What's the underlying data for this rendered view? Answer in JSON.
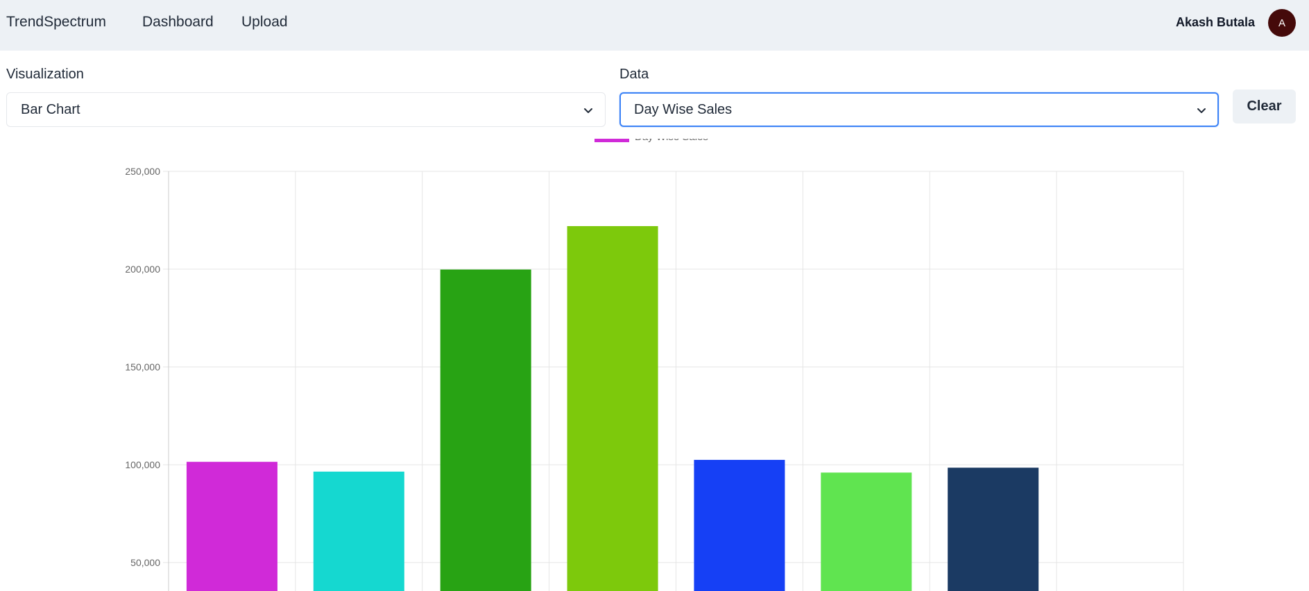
{
  "navbar": {
    "brand": "TrendSpectrum",
    "links": [
      "Dashboard",
      "Upload"
    ],
    "user_name": "Akash Butala",
    "avatar_initial": "A",
    "avatar_color": "#450a0a"
  },
  "controls": {
    "visualization_label": "Visualization",
    "visualization_value": "Bar Chart",
    "data_label": "Data",
    "data_value": "Day Wise Sales",
    "clear_label": "Clear"
  },
  "chart_data": {
    "type": "bar",
    "title": "",
    "xlabel": "",
    "ylabel": "",
    "legend": {
      "label": "Day Wise Sales",
      "color": "#d02ad8",
      "placement": "top-center"
    },
    "grid": true,
    "ylim": [
      0,
      250000
    ],
    "yticks": [
      "250,000",
      "200,000",
      "150,000",
      "100,000",
      "50,000"
    ],
    "ytick_values": [
      250000,
      200000,
      150000,
      100000,
      50000
    ],
    "categories": [
      "",
      "",
      "",
      "",
      "",
      "",
      "",
      ""
    ],
    "series": [
      {
        "name": "Day Wise Sales",
        "values": [
          101500,
          96500,
          199800,
          222000,
          102500,
          96000,
          98500,
          null
        ],
        "colors": [
          "#d02ad8",
          "#15d8d0",
          "#28a314",
          "#7dc90c",
          "#1640f5",
          "#60e450",
          "#1b3a63",
          null
        ]
      }
    ]
  }
}
